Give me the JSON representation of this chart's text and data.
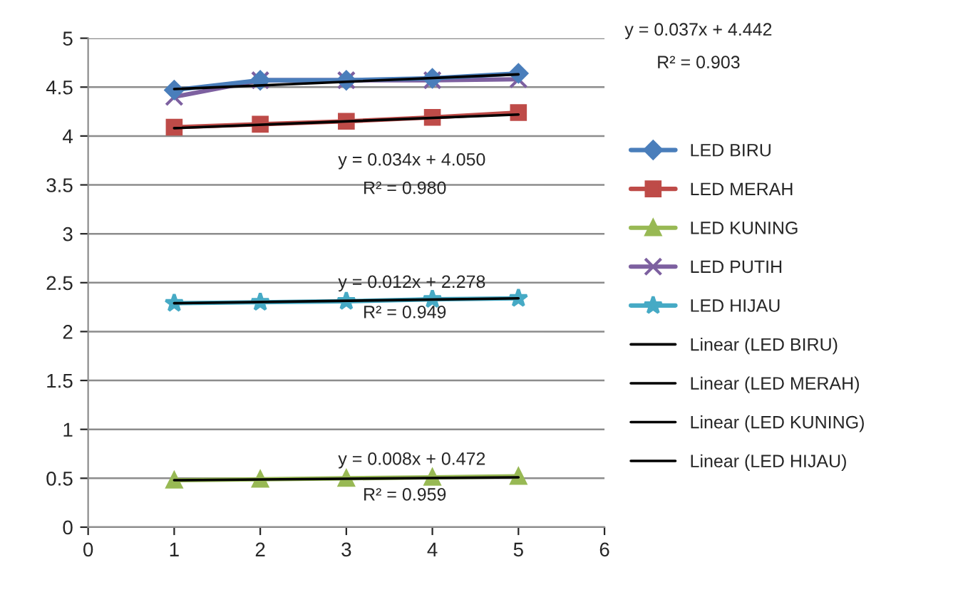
{
  "chart_data": {
    "type": "line",
    "series": [
      {
        "name": "LED BIRU",
        "color": "#4a7ebb",
        "marker": "diamond",
        "x": [
          1,
          2,
          3,
          4,
          5
        ],
        "values": [
          4.47,
          4.57,
          4.57,
          4.59,
          4.64
        ]
      },
      {
        "name": "LED MERAH",
        "color": "#be4b48",
        "marker": "square",
        "x": [
          1,
          2,
          3,
          4,
          5
        ],
        "values": [
          4.09,
          4.12,
          4.15,
          4.19,
          4.24
        ]
      },
      {
        "name": "LED KUNING",
        "color": "#98b954",
        "marker": "triangle",
        "x": [
          1,
          2,
          3,
          4,
          5
        ],
        "values": [
          0.48,
          0.49,
          0.5,
          0.51,
          0.52
        ]
      },
      {
        "name": "LED PUTIH",
        "color": "#7d60a0",
        "marker": "cross",
        "x": [
          1,
          2,
          3,
          4,
          5
        ],
        "values": [
          4.4,
          4.57,
          4.57,
          4.57,
          4.58
        ]
      },
      {
        "name": "LED HIJAU",
        "color": "#46aac5",
        "marker": "star",
        "x": [
          1,
          2,
          3,
          4,
          5
        ],
        "values": [
          2.29,
          2.3,
          2.31,
          2.33,
          2.34
        ]
      },
      {
        "name": "Linear (LED BIRU)",
        "color": "#000000",
        "marker": "none",
        "x": [
          1,
          5
        ],
        "values": [
          4.48,
          4.63
        ]
      },
      {
        "name": "Linear (LED MERAH)",
        "color": "#000000",
        "marker": "none",
        "x": [
          1,
          5
        ],
        "values": [
          4.08,
          4.22
        ]
      },
      {
        "name": "Linear (LED KUNING)",
        "color": "#000000",
        "marker": "none",
        "x": [
          1,
          5
        ],
        "values": [
          0.48,
          0.51
        ]
      },
      {
        "name": "Linear (LED HIJAU)",
        "color": "#000000",
        "marker": "none",
        "x": [
          1,
          5
        ],
        "values": [
          2.29,
          2.34
        ]
      }
    ],
    "xlim": [
      0,
      6
    ],
    "xticks": [
      0,
      1,
      2,
      3,
      4,
      5,
      6
    ],
    "ylim": [
      0,
      5
    ],
    "yticks": [
      0,
      0.5,
      1,
      1.5,
      2,
      2.5,
      3,
      3.5,
      4,
      4.5,
      5
    ],
    "grid": "y",
    "legend": "right",
    "line_style": "solid",
    "annotations": [
      "y = 0.037x + 4.442",
      "R² = 0.903",
      "y = 0.034x + 4.050",
      "R² = 0.980",
      "y = 0.012x + 2.278",
      "R² = 0.949",
      "y = 0.008x + 0.472",
      "R² = 0.959"
    ]
  }
}
